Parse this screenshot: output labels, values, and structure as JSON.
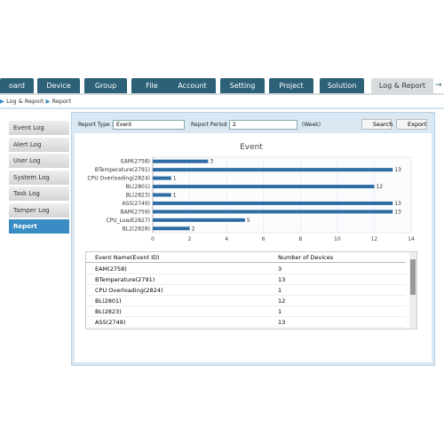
{
  "tabs": [
    "oard",
    "Device",
    "Group",
    "File",
    "Account",
    "Setting",
    "Project",
    "Solution",
    "Log & Report"
  ],
  "breadcrumb": [
    "Log & Report",
    "Report"
  ],
  "sidebar": [
    "Event Log",
    "Alert Log",
    "User Log",
    "System Log",
    "Task Log",
    "Tamper Log",
    "Report"
  ],
  "filters": {
    "report_type_label": "Report Type :",
    "report_type": "Event",
    "report_period_label": "Report Period :",
    "report_period": "2",
    "period_unit": "(Week)",
    "search": "Search",
    "export": "Export"
  },
  "chart_data": {
    "type": "bar",
    "title": "Event",
    "categories": [
      "EAM(2758)",
      "BTemperature(2791)",
      "CPU Overloading(2824)",
      "BL(2801)",
      "BL(2823)",
      "ASS(2749)",
      "BAM(2759)",
      "CPU_Load(2827)",
      "BL2(2828)"
    ],
    "values": [
      3,
      13,
      1,
      12,
      1,
      13,
      13,
      5,
      2
    ],
    "color": "#2e6ca4",
    "xlim": [
      0,
      14
    ],
    "xticks": [
      0,
      2,
      4,
      6,
      8,
      10,
      12,
      14
    ],
    "grid": true
  },
  "table": {
    "columns": [
      "Event Name(Event ID)",
      "Number of Devices"
    ],
    "rows": [
      [
        "EAM(2758)",
        3
      ],
      [
        "BTemperature(2791)",
        13
      ],
      [
        "CPU Overloading(2824)",
        1
      ],
      [
        "BL(2801)",
        12
      ],
      [
        "BL(2823)",
        1
      ],
      [
        "ASS(2749)",
        13
      ]
    ]
  }
}
